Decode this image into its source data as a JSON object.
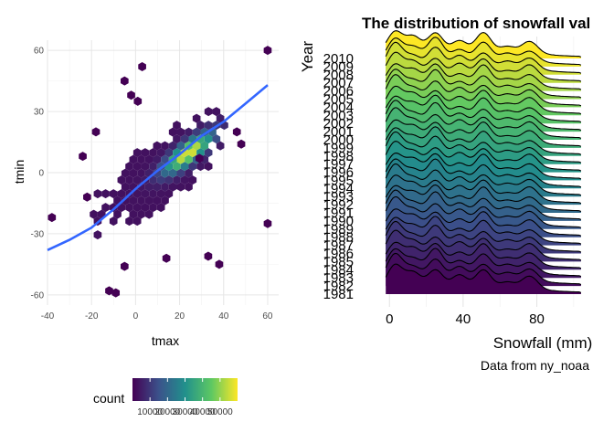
{
  "chart_data": [
    {
      "type": "heatmap",
      "subtype": "hexbin-with-smooth",
      "xlabel": "tmax",
      "ylabel": "tmin",
      "xlim": [
        -40,
        65
      ],
      "ylim": [
        -65,
        65
      ],
      "xticks": [
        "-40",
        "-20",
        "0",
        "20",
        "40",
        "60"
      ],
      "yticks": [
        "60",
        "30",
        "0",
        "-30",
        "-60"
      ],
      "grid": true,
      "palette": [
        "#440154",
        "#3b528b",
        "#21908c",
        "#5dc863",
        "#fde725"
      ],
      "smooth_color": "#3366ff",
      "smooth_line": {
        "x": [
          -40,
          -30,
          -20,
          -10,
          0,
          10,
          20,
          30,
          40,
          50,
          60
        ],
        "y": [
          -38,
          -33,
          -27,
          -18,
          -8,
          1,
          9,
          18,
          25,
          34,
          43
        ]
      },
      "legend": {
        "title": "count",
        "position": "bottom",
        "labels": [
          "10000",
          "20000",
          "30000",
          "40000",
          "50000"
        ],
        "max": 60000
      }
    },
    {
      "type": "area",
      "subtype": "ridgeline",
      "title": "The distribution of snowfall val",
      "xlabel": "Snowfall (mm)",
      "ylabel": "Year",
      "caption": "Data from ny_noaa",
      "xlim": [
        -15,
        110
      ],
      "xticks": [
        "0",
        "40",
        "80"
      ],
      "years": [
        "1981",
        "1982",
        "1983",
        "1984",
        "1985",
        "1986",
        "1987",
        "1988",
        "1989",
        "1990",
        "1991",
        "1992",
        "1993",
        "1994",
        "1995",
        "1996",
        "1997",
        "1998",
        "1999",
        "2000",
        "2001",
        "2002",
        "2003",
        "2004",
        "2005",
        "2006",
        "2007",
        "2008",
        "2009",
        "2010"
      ],
      "density_peaks_mm": [
        3,
        13,
        25,
        38,
        51,
        64,
        76
      ],
      "palette": [
        "#440154",
        "#3b528b",
        "#21908c",
        "#5dc863",
        "#fde725"
      ],
      "grid": true
    }
  ]
}
